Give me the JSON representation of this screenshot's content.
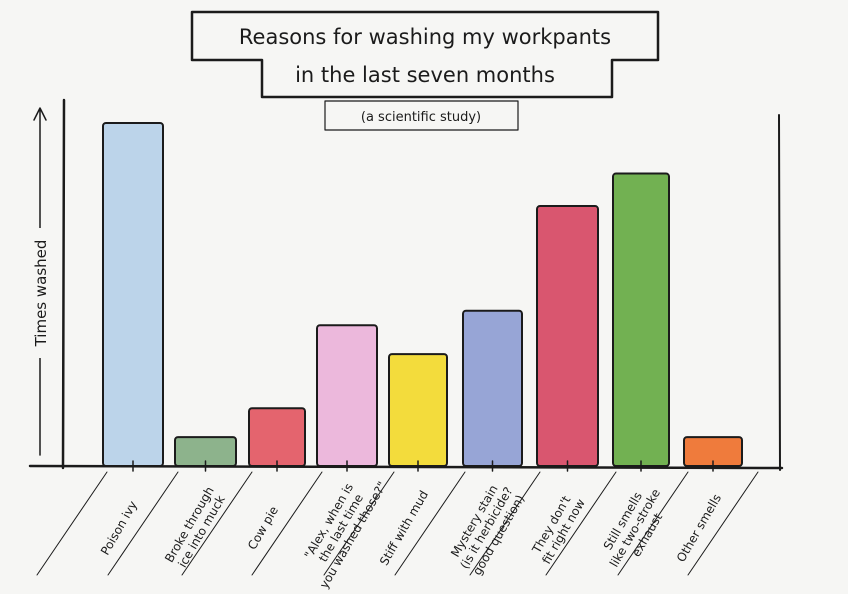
{
  "chart_data": {
    "type": "bar",
    "title": "Reasons for washing my workpants in the last seven months",
    "subtitle": "(a scientific study)",
    "xlabel": "",
    "ylabel": "Times washed",
    "ylim": [
      0,
      100
    ],
    "grid": false,
    "categories": [
      "Poison ivy",
      "Broke through\nice into muck",
      "Cow pie",
      "\"Alex, when is\nthe last time\nyou washed those?\"",
      "Stiff with mud",
      "Mystery stain\n(is it herbicide?\ngood question)",
      "They don't\nfit right now",
      "Still smells\nlike two-stroke\nexhaust",
      "Other smells"
    ],
    "values": [
      95,
      8,
      16,
      39,
      31,
      43,
      72,
      81,
      8
    ],
    "colors": [
      "#bcd4ea",
      "#8db38c",
      "#e4646e",
      "#ecb8dc",
      "#f3dc3c",
      "#97a5d6",
      "#d9566f",
      "#72b152",
      "#ef7b3c"
    ]
  }
}
